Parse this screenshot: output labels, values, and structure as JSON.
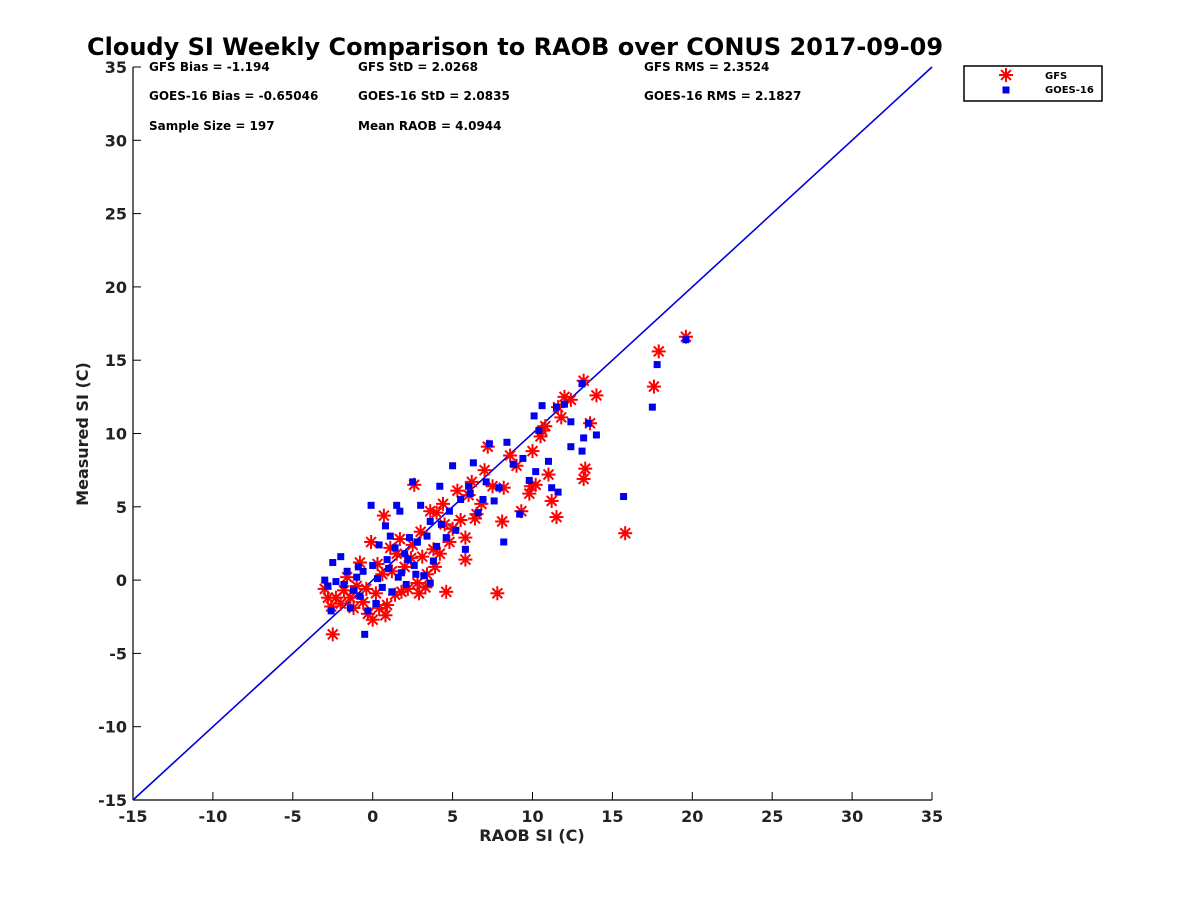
{
  "chart_data": {
    "type": "scatter",
    "title": "Cloudy SI Weekly Comparison to RAOB over CONUS 2017-09-09",
    "xlabel": "RAOB SI (C)",
    "ylabel": "Measured SI (C)",
    "xlim": [
      -15,
      35
    ],
    "ylim": [
      -15,
      35
    ],
    "xticks": [
      "-15",
      "-10",
      "-5",
      "0",
      "5",
      "10",
      "15",
      "20",
      "25",
      "30",
      "35"
    ],
    "yticks": [
      "-15",
      "-10",
      "-5",
      "0",
      "5",
      "10",
      "15",
      "20",
      "25",
      "30",
      "35"
    ],
    "grid": false,
    "legend_position": "outside-top-right",
    "reference_line": {
      "from": [
        -15,
        -15
      ],
      "to": [
        35,
        35
      ],
      "color": "#0000dd"
    },
    "stats": [
      "GFS Bias = -1.194",
      "GFS StD = 2.0268",
      "GFS RMS = 2.3524",
      "GOES-16 Bias = -0.65046",
      "GOES-16 StD = 2.0835",
      "GOES-16 RMS = 2.1827",
      "Sample Size = 197",
      "Mean RAOB = 4.0944"
    ],
    "series": [
      {
        "name": "GFS",
        "marker": "asterisk",
        "color": "#ff0000",
        "points": [
          [
            19.6,
            16.6
          ],
          [
            17.9,
            15.6
          ],
          [
            17.6,
            13.2
          ],
          [
            15.8,
            3.2
          ],
          [
            14.0,
            12.6
          ],
          [
            13.2,
            13.6
          ],
          [
            13.3,
            7.6
          ],
          [
            13.2,
            6.9
          ],
          [
            13.6,
            10.7
          ],
          [
            12.4,
            12.3
          ],
          [
            12.0,
            12.5
          ],
          [
            11.6,
            11.8
          ],
          [
            11.5,
            4.3
          ],
          [
            11.2,
            5.4
          ],
          [
            11.0,
            7.2
          ],
          [
            10.8,
            10.5
          ],
          [
            10.5,
            9.8
          ],
          [
            10.2,
            6.5
          ],
          [
            10.0,
            8.8
          ],
          [
            9.8,
            5.9
          ],
          [
            9.3,
            4.7
          ],
          [
            9.0,
            7.8
          ],
          [
            8.6,
            8.5
          ],
          [
            8.2,
            6.3
          ],
          [
            8.1,
            4.0
          ],
          [
            7.8,
            -0.9
          ],
          [
            7.5,
            6.4
          ],
          [
            7.2,
            9.1
          ],
          [
            7.0,
            7.5
          ],
          [
            6.8,
            5.2
          ],
          [
            6.5,
            4.5
          ],
          [
            6.2,
            6.7
          ],
          [
            6.0,
            5.8
          ],
          [
            5.8,
            2.9
          ],
          [
            5.8,
            1.4
          ],
          [
            5.5,
            4.1
          ],
          [
            5.3,
            6.1
          ],
          [
            5.0,
            3.5
          ],
          [
            4.8,
            2.6
          ],
          [
            4.5,
            3.8
          ],
          [
            4.4,
            5.2
          ],
          [
            4.2,
            1.8
          ],
          [
            4.0,
            4.6
          ],
          [
            3.8,
            2.1
          ],
          [
            3.6,
            4.7
          ],
          [
            3.4,
            0.4
          ],
          [
            3.3,
            -0.5
          ],
          [
            3.1,
            1.6
          ],
          [
            3.0,
            3.3
          ],
          [
            2.8,
            -0.2
          ],
          [
            2.6,
            6.5
          ],
          [
            2.5,
            2.4
          ],
          [
            2.4,
            1.5
          ],
          [
            2.2,
            -0.6
          ],
          [
            2.0,
            0.9
          ],
          [
            1.8,
            -0.8
          ],
          [
            1.7,
            2.8
          ],
          [
            1.5,
            1.8
          ],
          [
            1.4,
            -1.0
          ],
          [
            1.2,
            0.6
          ],
          [
            1.1,
            2.2
          ],
          [
            0.9,
            -1.7
          ],
          [
            0.8,
            -2.4
          ],
          [
            0.7,
            4.4
          ],
          [
            0.6,
            0.4
          ],
          [
            0.4,
            -1.9
          ],
          [
            0.3,
            1.1
          ],
          [
            0.2,
            -0.9
          ],
          [
            0.0,
            -2.7
          ],
          [
            -0.1,
            2.6
          ],
          [
            -0.3,
            -2.3
          ],
          [
            -0.4,
            -0.6
          ],
          [
            -0.6,
            -1.5
          ],
          [
            -0.8,
            1.2
          ],
          [
            -1.0,
            -0.4
          ],
          [
            -1.2,
            -1.9
          ],
          [
            -1.4,
            -1.2
          ],
          [
            -1.6,
            0.2
          ],
          [
            -1.8,
            -0.7
          ],
          [
            -2.0,
            -1.6
          ],
          [
            -2.3,
            -1.2
          ],
          [
            -2.5,
            -3.7
          ],
          [
            -2.6,
            -1.8
          ],
          [
            -2.8,
            -1.2
          ],
          [
            -3.0,
            -0.6
          ],
          [
            4.6,
            -0.8
          ],
          [
            3.9,
            0.9
          ],
          [
            2.9,
            -0.9
          ],
          [
            6.4,
            4.2
          ],
          [
            9.9,
            6.4
          ],
          [
            11.8,
            11.1
          ],
          [
            10.6,
            10.2
          ]
        ]
      },
      {
        "name": "GOES-16",
        "marker": "square",
        "color": "#0000ee",
        "points": [
          [
            19.6,
            16.4
          ],
          [
            17.8,
            14.7
          ],
          [
            17.5,
            11.8
          ],
          [
            15.7,
            5.7
          ],
          [
            14.0,
            9.9
          ],
          [
            13.5,
            10.7
          ],
          [
            13.1,
            13.4
          ],
          [
            13.2,
            9.7
          ],
          [
            13.1,
            8.8
          ],
          [
            12.4,
            9.1
          ],
          [
            12.0,
            12.0
          ],
          [
            11.5,
            11.8
          ],
          [
            11.6,
            6.0
          ],
          [
            11.2,
            6.3
          ],
          [
            11.0,
            8.1
          ],
          [
            10.6,
            11.9
          ],
          [
            10.4,
            10.2
          ],
          [
            10.2,
            7.4
          ],
          [
            10.1,
            11.2
          ],
          [
            9.8,
            6.8
          ],
          [
            9.4,
            8.3
          ],
          [
            9.2,
            4.5
          ],
          [
            8.8,
            7.9
          ],
          [
            8.4,
            9.4
          ],
          [
            8.2,
            2.6
          ],
          [
            7.9,
            6.3
          ],
          [
            7.6,
            5.4
          ],
          [
            7.3,
            9.3
          ],
          [
            7.1,
            6.7
          ],
          [
            6.9,
            5.5
          ],
          [
            6.6,
            4.6
          ],
          [
            6.3,
            8.0
          ],
          [
            6.0,
            6.4
          ],
          [
            5.8,
            2.1
          ],
          [
            5.5,
            5.5
          ],
          [
            5.2,
            3.4
          ],
          [
            5.0,
            7.8
          ],
          [
            4.8,
            4.7
          ],
          [
            4.6,
            2.9
          ],
          [
            4.3,
            3.8
          ],
          [
            4.2,
            6.4
          ],
          [
            4.0,
            2.3
          ],
          [
            3.8,
            1.3
          ],
          [
            3.6,
            4.0
          ],
          [
            3.4,
            3.0
          ],
          [
            3.2,
            0.3
          ],
          [
            3.0,
            5.1
          ],
          [
            2.8,
            2.6
          ],
          [
            2.6,
            1.0
          ],
          [
            2.5,
            6.7
          ],
          [
            2.3,
            2.9
          ],
          [
            2.1,
            -0.3
          ],
          [
            2.0,
            1.8
          ],
          [
            1.8,
            0.5
          ],
          [
            1.7,
            4.7
          ],
          [
            1.5,
            5.1
          ],
          [
            1.4,
            2.2
          ],
          [
            1.2,
            -0.8
          ],
          [
            1.1,
            3.0
          ],
          [
            0.9,
            1.4
          ],
          [
            0.8,
            3.7
          ],
          [
            0.6,
            -0.5
          ],
          [
            0.4,
            2.4
          ],
          [
            0.2,
            -1.6
          ],
          [
            0.0,
            1.0
          ],
          [
            -0.1,
            5.1
          ],
          [
            -0.3,
            -2.1
          ],
          [
            -0.5,
            -3.7
          ],
          [
            -0.6,
            0.6
          ],
          [
            -0.8,
            -1.1
          ],
          [
            -1.0,
            0.2
          ],
          [
            -1.2,
            -0.7
          ],
          [
            -1.4,
            -1.9
          ],
          [
            -1.6,
            0.6
          ],
          [
            -1.8,
            -0.3
          ],
          [
            -2.0,
            1.6
          ],
          [
            -2.3,
            -0.1
          ],
          [
            -2.5,
            1.2
          ],
          [
            -2.6,
            -2.1
          ],
          [
            -2.8,
            -0.4
          ],
          [
            -3.0,
            0.0
          ],
          [
            2.2,
            1.4
          ],
          [
            1.6,
            0.2
          ],
          [
            3.6,
            -0.2
          ],
          [
            2.7,
            0.4
          ],
          [
            1.0,
            0.8
          ],
          [
            0.3,
            0.1
          ],
          [
            -0.9,
            0.9
          ],
          [
            6.1,
            5.9
          ],
          [
            12.4,
            10.8
          ]
        ]
      }
    ]
  }
}
